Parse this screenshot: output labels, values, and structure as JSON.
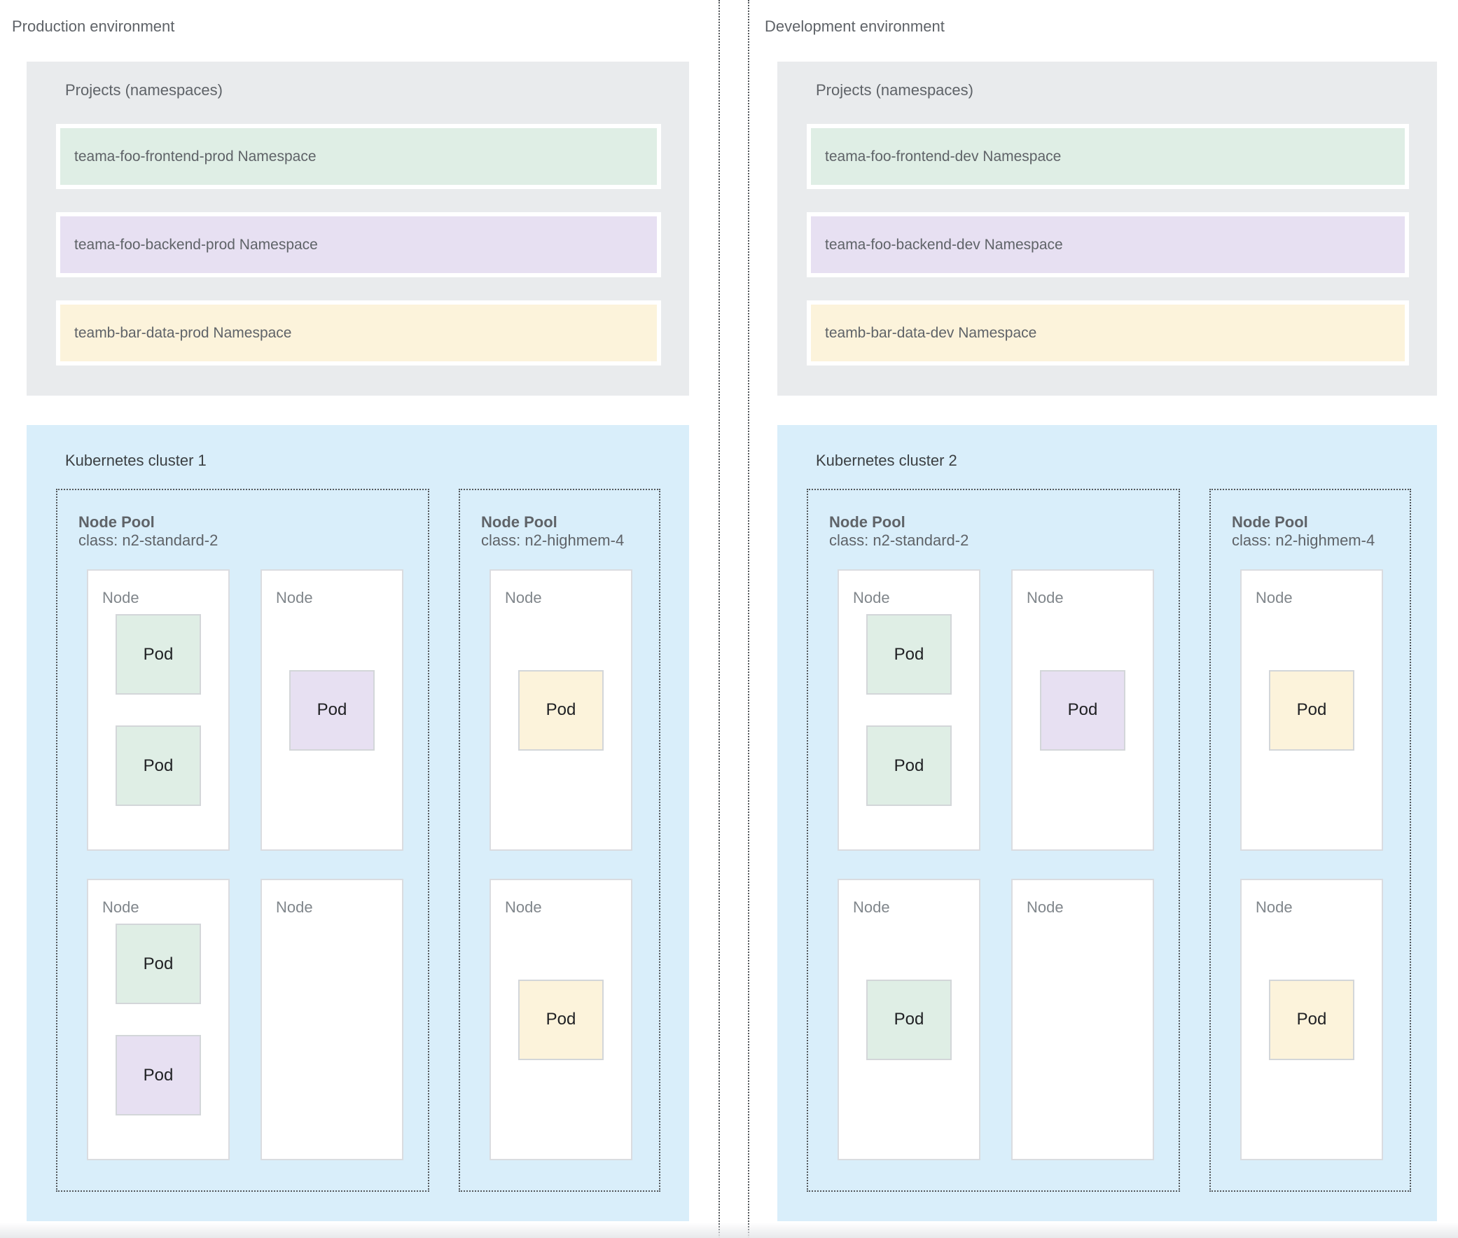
{
  "colors": {
    "green": "#dfeee5",
    "purple": "#e7e0f2",
    "yellow": "#fcf3db",
    "cluster_bg": "#d9eefa",
    "projects_bg": "#e9ebed"
  },
  "environments": [
    {
      "title": "Production environment",
      "projects_label": "Projects (namespaces)",
      "namespaces": [
        {
          "label": "teama-foo-frontend-prod Namespace",
          "color": "green"
        },
        {
          "label": "teama-foo-backend-prod Namespace",
          "color": "purple"
        },
        {
          "label": "teamb-bar-data-prod Namespace",
          "color": "yellow"
        }
      ],
      "cluster": {
        "title": "Kubernetes cluster 1",
        "node_pools": [
          {
            "name": "Node Pool",
            "class": "class: n2-standard-2",
            "columns": 2,
            "nodes": [
              {
                "label": "Node",
                "pods": [
                  {
                    "label": "Pod",
                    "color": "green"
                  },
                  {
                    "label": "Pod",
                    "color": "green"
                  }
                ]
              },
              {
                "label": "Node",
                "pods": [
                  {
                    "label": "Pod",
                    "color": "purple"
                  }
                ]
              },
              {
                "label": "Node",
                "pods": [
                  {
                    "label": "Pod",
                    "color": "green"
                  },
                  {
                    "label": "Pod",
                    "color": "purple"
                  }
                ]
              },
              {
                "label": "Node",
                "pods": []
              }
            ]
          },
          {
            "name": "Node Pool",
            "class": "class: n2-highmem-4",
            "columns": 1,
            "nodes": [
              {
                "label": "Node",
                "pods": [
                  {
                    "label": "Pod",
                    "color": "yellow"
                  }
                ]
              },
              {
                "label": "Node",
                "pods": [
                  {
                    "label": "Pod",
                    "color": "yellow"
                  }
                ]
              }
            ]
          }
        ]
      }
    },
    {
      "title": "Development environment",
      "projects_label": "Projects (namespaces)",
      "namespaces": [
        {
          "label": "teama-foo-frontend-dev Namespace",
          "color": "green"
        },
        {
          "label": "teama-foo-backend-dev Namespace",
          "color": "purple"
        },
        {
          "label": "teamb-bar-data-dev Namespace",
          "color": "yellow"
        }
      ],
      "cluster": {
        "title": "Kubernetes cluster 2",
        "node_pools": [
          {
            "name": "Node Pool",
            "class": "class: n2-standard-2",
            "columns": 2,
            "nodes": [
              {
                "label": "Node",
                "pods": [
                  {
                    "label": "Pod",
                    "color": "green"
                  },
                  {
                    "label": "Pod",
                    "color": "green"
                  }
                ]
              },
              {
                "label": "Node",
                "pods": [
                  {
                    "label": "Pod",
                    "color": "purple"
                  }
                ]
              },
              {
                "label": "Node",
                "pods": [
                  {
                    "label": "Pod",
                    "color": "green"
                  }
                ]
              },
              {
                "label": "Node",
                "pods": []
              }
            ]
          },
          {
            "name": "Node Pool",
            "class": "class: n2-highmem-4",
            "columns": 1,
            "nodes": [
              {
                "label": "Node",
                "pods": [
                  {
                    "label": "Pod",
                    "color": "yellow"
                  }
                ]
              },
              {
                "label": "Node",
                "pods": [
                  {
                    "label": "Pod",
                    "color": "yellow"
                  }
                ]
              }
            ]
          }
        ]
      }
    }
  ]
}
